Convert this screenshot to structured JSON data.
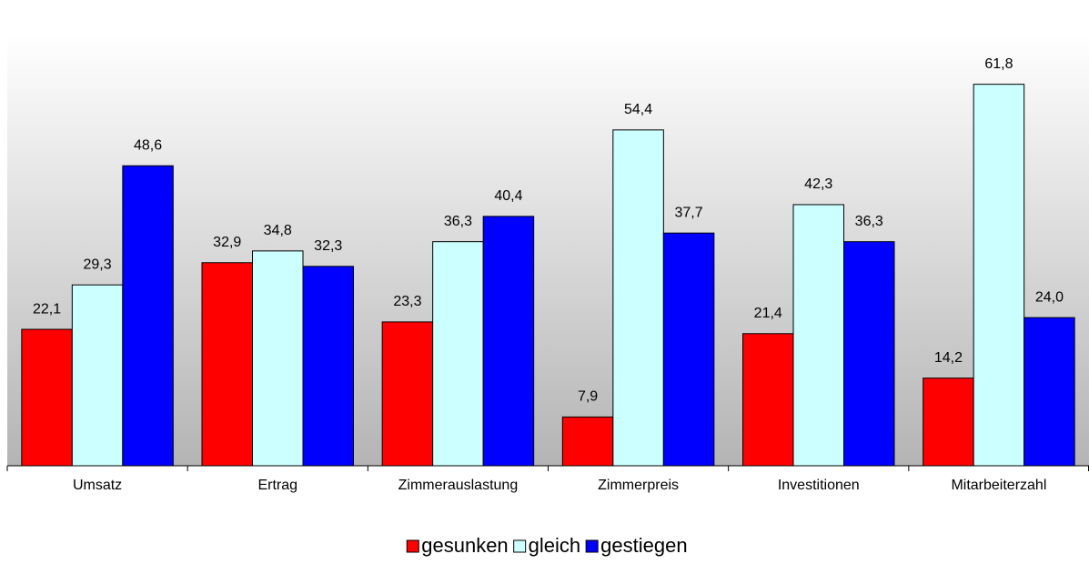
{
  "chart_data": {
    "type": "bar",
    "categories": [
      "Umsatz",
      "Ertrag",
      "Zimmerauslastung",
      "Zimmerpreis",
      "Investitionen",
      "Mitarbeiterzahl"
    ],
    "series": [
      {
        "name": "gesunken",
        "color": "#ff0000",
        "values": [
          22.1,
          32.9,
          23.3,
          7.9,
          21.4,
          14.2
        ],
        "value_labels": [
          "22,1",
          "32,9",
          "23,3",
          "7,9",
          "21,4",
          "14,2"
        ]
      },
      {
        "name": "gleich",
        "color": "#ccffff",
        "values": [
          29.3,
          34.8,
          36.3,
          54.4,
          42.3,
          61.8
        ],
        "value_labels": [
          "29,3",
          "34,8",
          "36,3",
          "54,4",
          "42,3",
          "61,8"
        ]
      },
      {
        "name": "gestiegen",
        "color": "#0000ff",
        "values": [
          48.6,
          32.3,
          40.4,
          37.7,
          36.3,
          24.0
        ],
        "value_labels": [
          "48,6",
          "32,3",
          "40,4",
          "37,7",
          "36,3",
          "24,0"
        ]
      }
    ],
    "ylim": [
      0,
      70
    ],
    "legend": "bottom"
  }
}
